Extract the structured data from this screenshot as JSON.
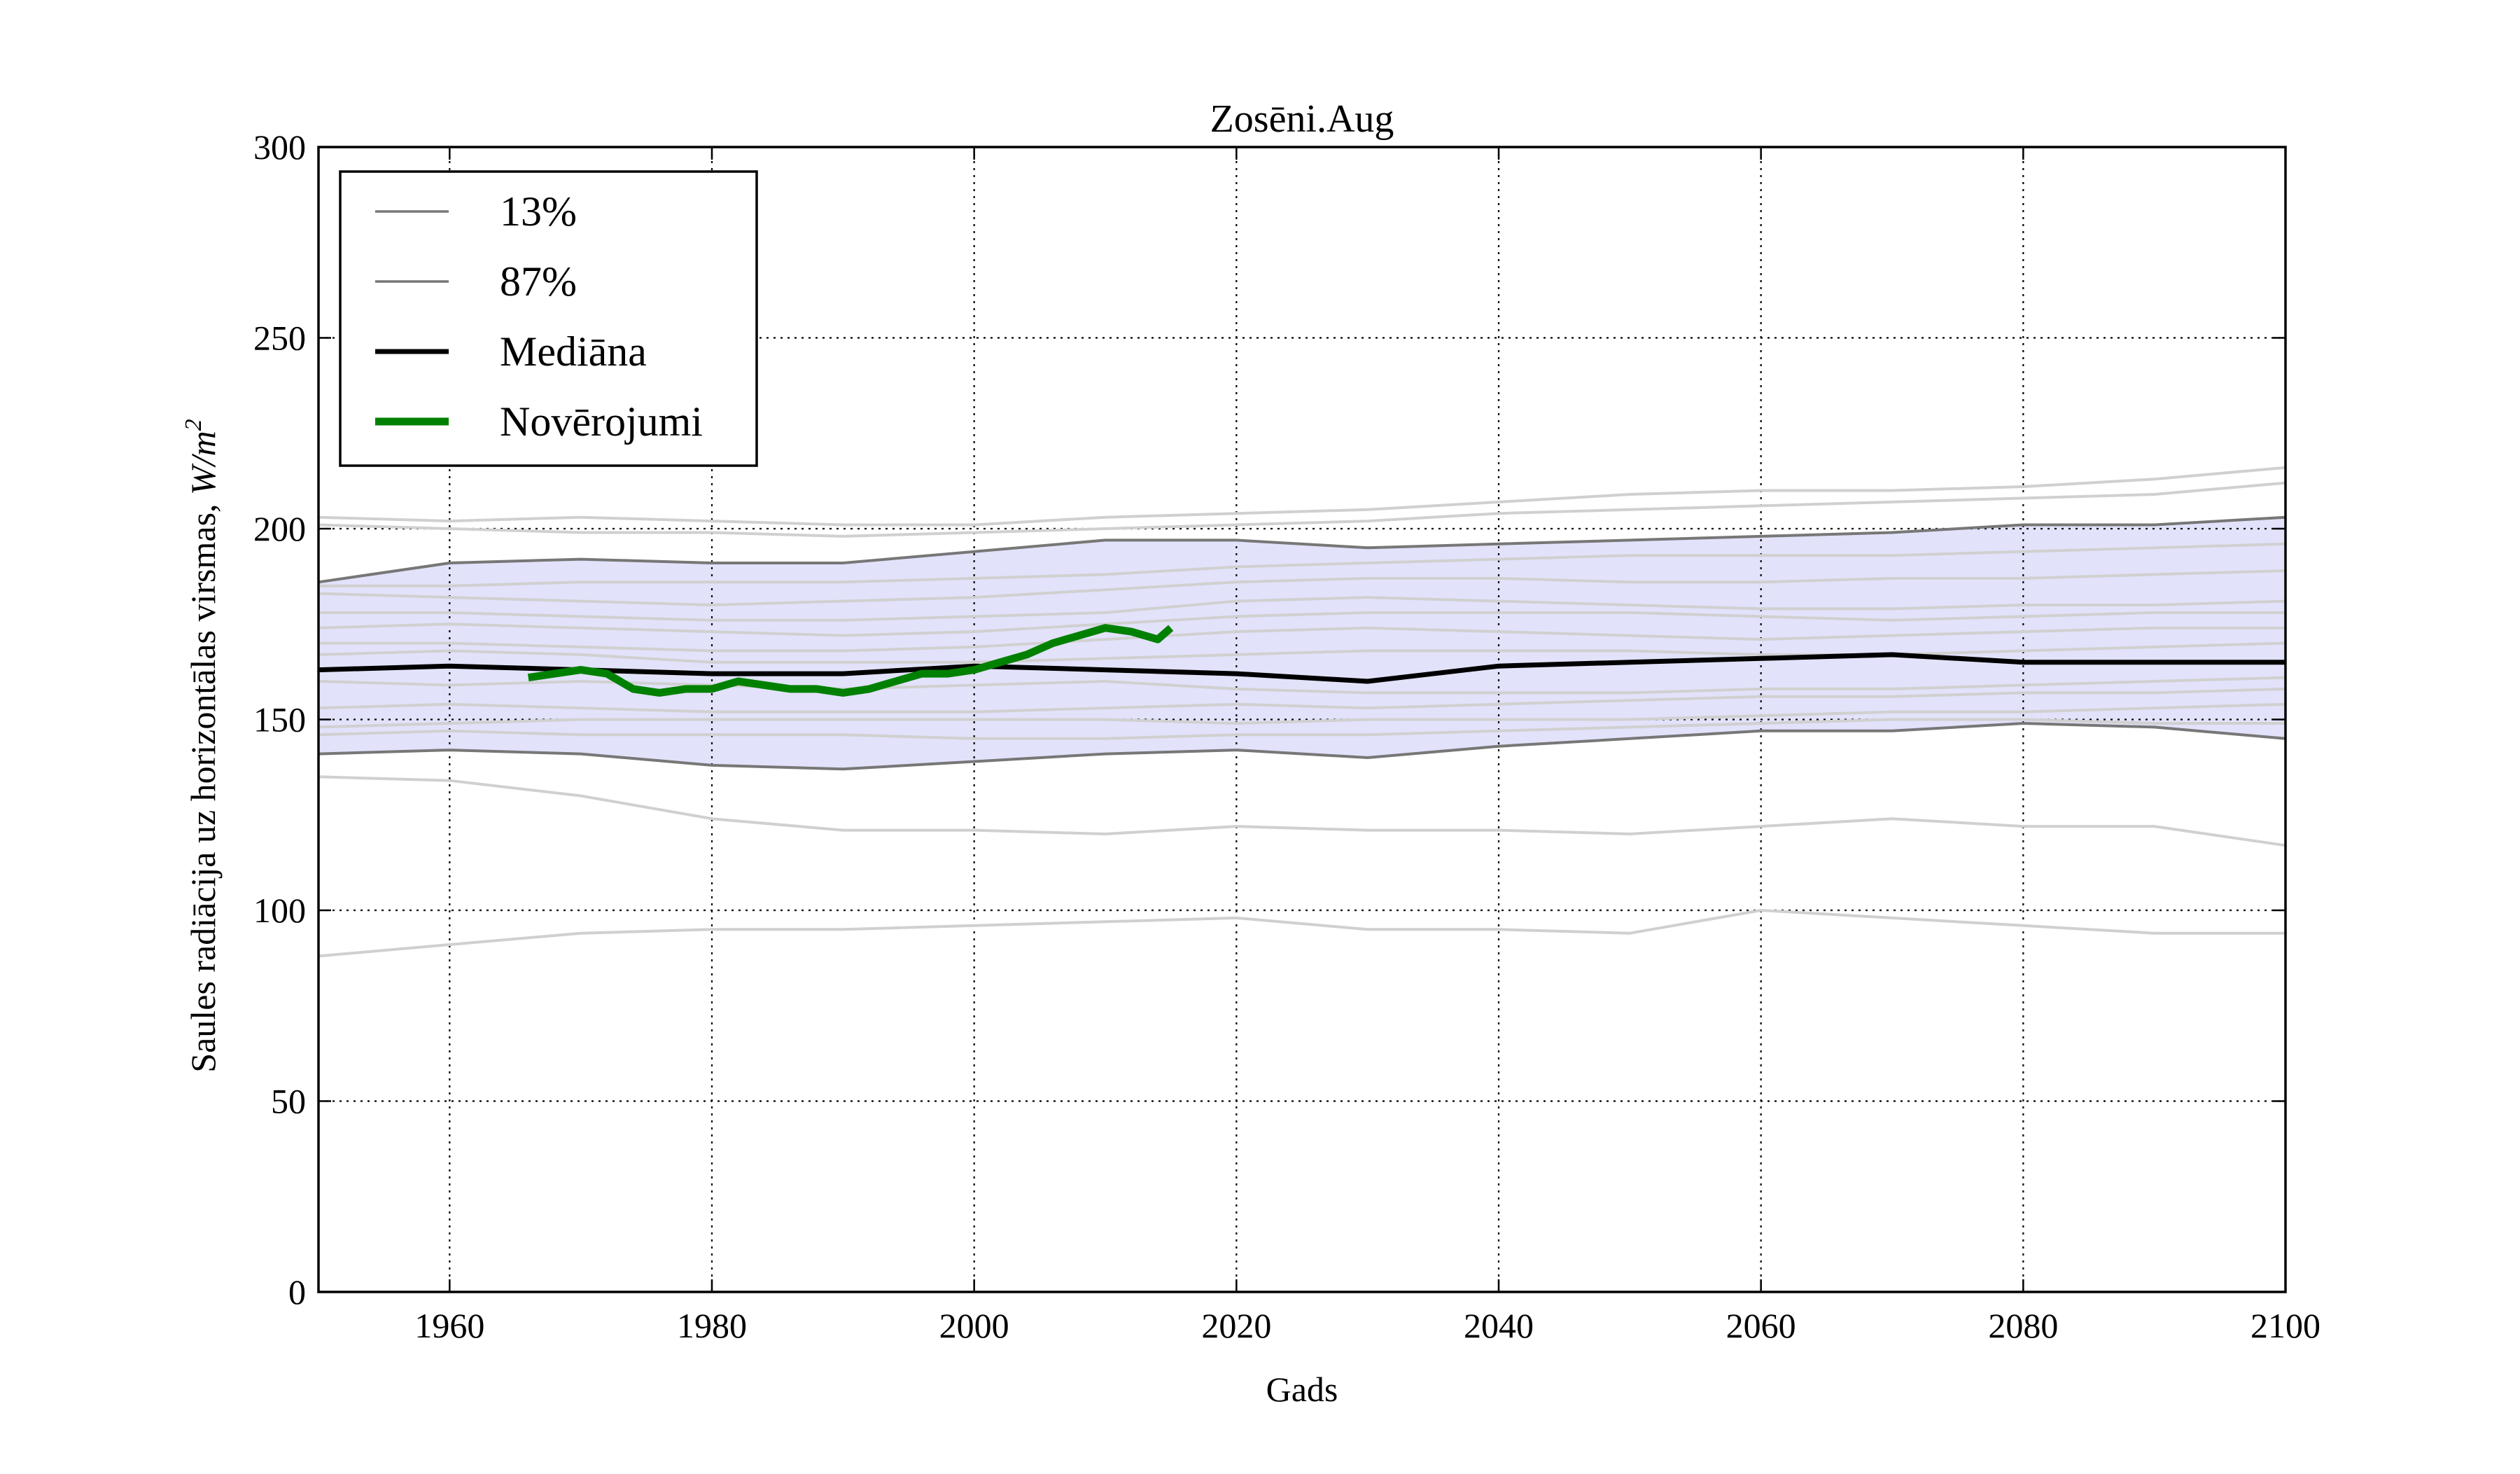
{
  "chart_data": {
    "type": "line",
    "title": "Zosēni.Aug",
    "xlabel": "Gads",
    "ylabel": "Saules radiācija uz horizontālas virsmas, ",
    "ylabel_unit": "W/m",
    "ylabel_unit_sup": "2",
    "xlim": [
      1950,
      2100
    ],
    "ylim": [
      0,
      300
    ],
    "xticks": [
      1960,
      1980,
      2000,
      2020,
      2040,
      2060,
      2080,
      2100
    ],
    "yticks": [
      0,
      50,
      100,
      150,
      200,
      250,
      300
    ],
    "grid": true,
    "legend_position": "top-left",
    "band_fill_color": "#e2e2fb",
    "legend": [
      {
        "label": "13%",
        "color": "#777777"
      },
      {
        "label": "87%",
        "color": "#777777"
      },
      {
        "label": "Mediāna",
        "color": "#000000"
      },
      {
        "label": "Novērojumi",
        "color": "#008000"
      }
    ],
    "x_model": [
      1950,
      1960,
      1970,
      1980,
      1990,
      2000,
      2010,
      2020,
      2030,
      2040,
      2050,
      2060,
      2070,
      2080,
      2090,
      2100
    ],
    "ensemble_members": [
      [
        203,
        202,
        203,
        202,
        201,
        201,
        203,
        204,
        205,
        207,
        209,
        210,
        210,
        211,
        213,
        216
      ],
      [
        201,
        200,
        199,
        199,
        198,
        199,
        200,
        201,
        202,
        204,
        205,
        206,
        207,
        208,
        209,
        212
      ],
      [
        185,
        185,
        186,
        186,
        186,
        187,
        188,
        190,
        191,
        192,
        193,
        193,
        193,
        194,
        195,
        196
      ],
      [
        183,
        182,
        181,
        180,
        181,
        182,
        184,
        186,
        187,
        187,
        186,
        186,
        187,
        187,
        188,
        189
      ],
      [
        178,
        178,
        177,
        176,
        176,
        177,
        178,
        181,
        182,
        181,
        180,
        179,
        179,
        180,
        180,
        181
      ],
      [
        174,
        175,
        174,
        173,
        172,
        173,
        175,
        177,
        178,
        178,
        178,
        177,
        176,
        177,
        178,
        178
      ],
      [
        170,
        170,
        169,
        168,
        168,
        169,
        171,
        173,
        174,
        173,
        172,
        171,
        172,
        173,
        174,
        174
      ],
      [
        167,
        168,
        167,
        165,
        165,
        165,
        166,
        167,
        168,
        168,
        168,
        167,
        167,
        168,
        169,
        170
      ],
      [
        160,
        159,
        160,
        159,
        158,
        159,
        160,
        158,
        157,
        157,
        157,
        158,
        158,
        159,
        160,
        161
      ],
      [
        153,
        154,
        153,
        152,
        152,
        152,
        153,
        154,
        153,
        154,
        155,
        156,
        156,
        157,
        157,
        158
      ],
      [
        148,
        149,
        150,
        150,
        150,
        150,
        150,
        149,
        150,
        150,
        150,
        151,
        152,
        152,
        153,
        154
      ],
      [
        146,
        147,
        146,
        146,
        146,
        145,
        145,
        146,
        146,
        147,
        148,
        149,
        150,
        150,
        149,
        149
      ],
      [
        135,
        134,
        130,
        124,
        121,
        121,
        120,
        122,
        121,
        121,
        120,
        122,
        124,
        122,
        122,
        117
      ],
      [
        88,
        91,
        94,
        95,
        95,
        96,
        97,
        98,
        95,
        95,
        94,
        100,
        98,
        96,
        94,
        94
      ]
    ],
    "series": [
      {
        "name": "13%",
        "color": "#777777",
        "values": [
          141,
          142,
          141,
          138,
          137,
          139,
          141,
          142,
          140,
          143,
          145,
          147,
          147,
          149,
          148,
          145
        ]
      },
      {
        "name": "87%",
        "color": "#777777",
        "values": [
          186,
          191,
          192,
          191,
          191,
          194,
          197,
          197,
          195,
          196,
          197,
          198,
          199,
          201,
          201,
          203
        ]
      },
      {
        "name": "Mediāna",
        "color": "#000000",
        "values": [
          163,
          164,
          163,
          162,
          162,
          164,
          163,
          162,
          160,
          164,
          165,
          166,
          167,
          165,
          165,
          165
        ]
      },
      {
        "name": "Novērojumi",
        "color": "#008000",
        "x": [
          1966,
          1968,
          1970,
          1972,
          1974,
          1976,
          1978,
          1980,
          1982,
          1984,
          1986,
          1988,
          1990,
          1992,
          1994,
          1996,
          1998,
          2000,
          2002,
          2004,
          2006,
          2008,
          2010,
          2012,
          2014,
          2015
        ],
        "values": [
          161,
          162,
          163,
          162,
          158,
          157,
          158,
          158,
          160,
          159,
          158,
          158,
          157,
          158,
          160,
          162,
          162,
          163,
          165,
          167,
          170,
          172,
          174,
          173,
          171,
          174
        ]
      }
    ]
  }
}
